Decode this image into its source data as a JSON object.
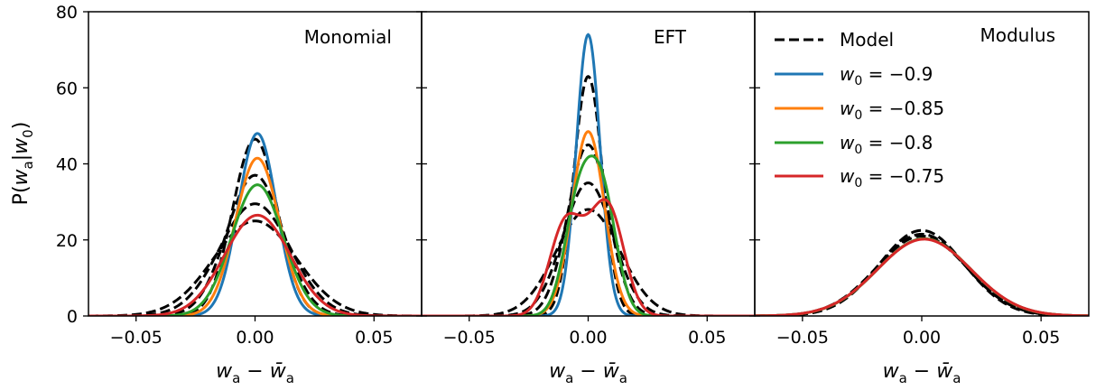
{
  "chart_data": [
    {
      "type": "line",
      "title": "Monomial",
      "xlabel": "w_a − w̄_a",
      "ylabel": "P(w_a|w_0)",
      "xlim": [
        -0.07,
        0.07
      ],
      "ylim": [
        0,
        80
      ],
      "xticks": [
        "−0.05",
        "0.00",
        "0.05"
      ],
      "yticks": [
        "0",
        "20",
        "40",
        "60",
        "80"
      ],
      "series": [
        {
          "name": "Model",
          "color": "#000000",
          "style": "dashed",
          "mu": 0.0,
          "sigma": 0.0094,
          "peak": 46.5
        },
        {
          "name": "Model",
          "color": "#000000",
          "style": "dashed",
          "mu": 0.0,
          "sigma": 0.0117,
          "peak": 37.0
        },
        {
          "name": "Model",
          "color": "#000000",
          "style": "dashed",
          "mu": 0.0,
          "sigma": 0.0148,
          "peak": 29.5
        },
        {
          "name": "Model",
          "color": "#000000",
          "style": "dashed",
          "mu": 0.0,
          "sigma": 0.0174,
          "peak": 25.0
        },
        {
          "name": "w0 = −0.9",
          "color": "#1f77b4",
          "style": "solid",
          "mu": 0.001,
          "sigma": 0.008,
          "peak": 48.0
        },
        {
          "name": "w0 = −0.85",
          "color": "#ff7f0e",
          "style": "solid",
          "mu": 0.001,
          "sigma": 0.0092,
          "peak": 41.5
        },
        {
          "name": "w0 = −0.8",
          "color": "#2ca02c",
          "style": "solid",
          "mu": 0.001,
          "sigma": 0.0108,
          "peak": 34.5
        },
        {
          "name": "w0 = −0.75",
          "color": "#d62728",
          "style": "solid",
          "mu": 0.001,
          "sigma": 0.0138,
          "peak": 26.5
        }
      ]
    },
    {
      "type": "line",
      "title": "EFT",
      "xlabel": "w_a − w̄_a",
      "xlim": [
        -0.07,
        0.07
      ],
      "ylim": [
        0,
        80
      ],
      "xticks": [
        "−0.05",
        "0.00",
        "0.05"
      ],
      "series": [
        {
          "name": "Model",
          "color": "#000000",
          "style": "dashed",
          "mu": 0.0,
          "sigma": 0.006,
          "peak": 63.0
        },
        {
          "name": "Model",
          "color": "#000000",
          "style": "dashed",
          "mu": 0.0,
          "sigma": 0.0085,
          "peak": 45.0
        },
        {
          "name": "Model",
          "color": "#000000",
          "style": "dashed",
          "mu": 0.0,
          "sigma": 0.0105,
          "peak": 35.0
        },
        {
          "name": "Model",
          "color": "#000000",
          "style": "dashed",
          "mu": 0.0,
          "sigma": 0.0135,
          "peak": 28.0
        },
        {
          "name": "w0 = −0.9",
          "color": "#1f77b4",
          "style": "solid",
          "mu": 0.0,
          "sigma": 0.005,
          "peak": 74.0
        },
        {
          "name": "w0 = −0.85",
          "color": "#ff7f0e",
          "style": "solid",
          "mu": 0.0,
          "sigma": 0.0068,
          "peak": 48.5
        },
        {
          "name": "w0 = −0.8",
          "color": "#2ca02c",
          "style": "solid",
          "components": [
            [
              -0.004,
              0.006,
              29.0
            ],
            [
              0.006,
              0.006,
              30.5
            ]
          ]
        },
        {
          "name": "w0 = −0.75",
          "color": "#d62728",
          "style": "solid",
          "components": [
            [
              -0.01,
              0.0065,
              23.0
            ],
            [
              0.009,
              0.0065,
              26.0
            ],
            [
              0.0,
              0.006,
              10.0
            ]
          ]
        }
      ]
    },
    {
      "type": "line",
      "title": "Modulus",
      "xlabel": "w_a − w̄_a",
      "xlim": [
        -0.07,
        0.07
      ],
      "ylim": [
        0,
        80
      ],
      "xticks": [
        "−0.05",
        "0.00",
        "0.05"
      ],
      "series": [
        {
          "name": "Model",
          "color": "#000000",
          "style": "dashed",
          "mu": 0.0,
          "sigma": 0.0178,
          "peak": 22.5
        },
        {
          "name": "Model",
          "color": "#000000",
          "style": "dashed",
          "mu": 0.0,
          "sigma": 0.0185,
          "peak": 21.5
        },
        {
          "name": "Model",
          "color": "#000000",
          "style": "dashed",
          "mu": 0.0,
          "sigma": 0.019,
          "peak": 21.0
        },
        {
          "name": "w0 = −0.9",
          "color": "#1f77b4",
          "style": "solid",
          "mu": 0.001,
          "sigma": 0.0195,
          "peak": 20.3
        },
        {
          "name": "w0 = −0.85",
          "color": "#ff7f0e",
          "style": "solid",
          "mu": 0.001,
          "sigma": 0.0195,
          "peak": 20.3
        },
        {
          "name": "w0 = −0.8",
          "color": "#2ca02c",
          "style": "solid",
          "mu": 0.001,
          "sigma": 0.0195,
          "peak": 20.3
        },
        {
          "name": "w0 = −0.75",
          "color": "#d62728",
          "style": "solid",
          "mu": 0.001,
          "sigma": 0.0196,
          "peak": 20.2
        }
      ]
    }
  ],
  "legend": {
    "placement": "upper-left of third panel",
    "entries": [
      {
        "label": "Model",
        "color": "#000000",
        "style": "dashed"
      },
      {
        "label_base": "w",
        "label_sub": "0",
        "label_rest": " = −0.9",
        "color": "#1f77b4",
        "style": "solid"
      },
      {
        "label_base": "w",
        "label_sub": "0",
        "label_rest": " = −0.85",
        "color": "#ff7f0e",
        "style": "solid"
      },
      {
        "label_base": "w",
        "label_sub": "0",
        "label_rest": " = −0.8",
        "color": "#2ca02c",
        "style": "solid"
      },
      {
        "label_base": "w",
        "label_sub": "0",
        "label_rest": " = −0.75",
        "color": "#d62728",
        "style": "solid"
      }
    ]
  },
  "axis_text": {
    "ylabel_parts": [
      "P(",
      "w",
      "a",
      "|",
      "w",
      "0",
      ")"
    ],
    "xlabel_parts": [
      "w",
      "a",
      " − ",
      "w̄",
      "a"
    ]
  }
}
